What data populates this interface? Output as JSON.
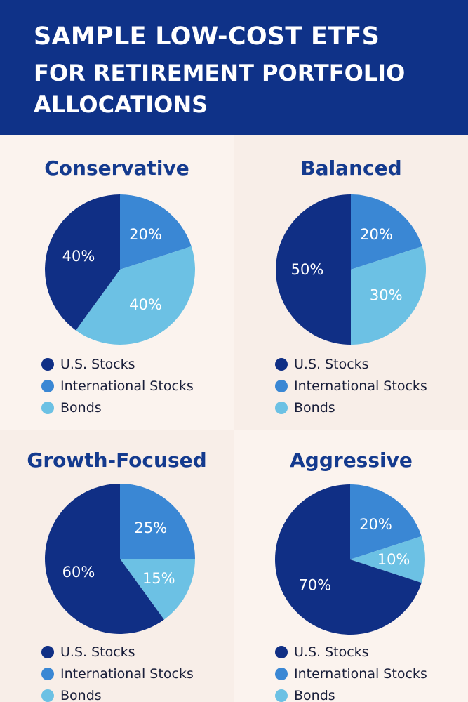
{
  "header": {
    "title_line1": "SAMPLE LOW-COST ETFS",
    "title_line2": "FOR RETIREMENT PORTFOLIO",
    "title_line3": "ALLOCATIONS"
  },
  "colors": {
    "us_stocks": "#102f85",
    "international_stocks": "#3a87d4",
    "bonds": "#6cc1e4"
  },
  "legend": [
    "U.S. Stocks",
    "International Stocks",
    "Bonds"
  ],
  "chart_data": [
    {
      "type": "pie",
      "title": "Conservative",
      "labels": [
        "U.S. Stocks",
        "International Stocks",
        "Bonds"
      ],
      "values": [
        40,
        20,
        40
      ],
      "value_labels": [
        "40%",
        "20%",
        "40%"
      ]
    },
    {
      "type": "pie",
      "title": "Balanced",
      "labels": [
        "U.S. Stocks",
        "International Stocks",
        "Bonds"
      ],
      "values": [
        50,
        20,
        30
      ],
      "value_labels": [
        "50%",
        "20%",
        "30%"
      ]
    },
    {
      "type": "pie",
      "title": "Growth-Focused",
      "labels": [
        "U.S. Stocks",
        "International Stocks",
        "Bonds"
      ],
      "values": [
        60,
        25,
        15
      ],
      "value_labels": [
        "60%",
        "25%",
        "15%"
      ]
    },
    {
      "type": "pie",
      "title": "Aggressive",
      "labels": [
        "U.S. Stocks",
        "International Stocks",
        "Bonds"
      ],
      "values": [
        70,
        20,
        10
      ],
      "value_labels": [
        "70%",
        "20%",
        "10%"
      ]
    }
  ]
}
